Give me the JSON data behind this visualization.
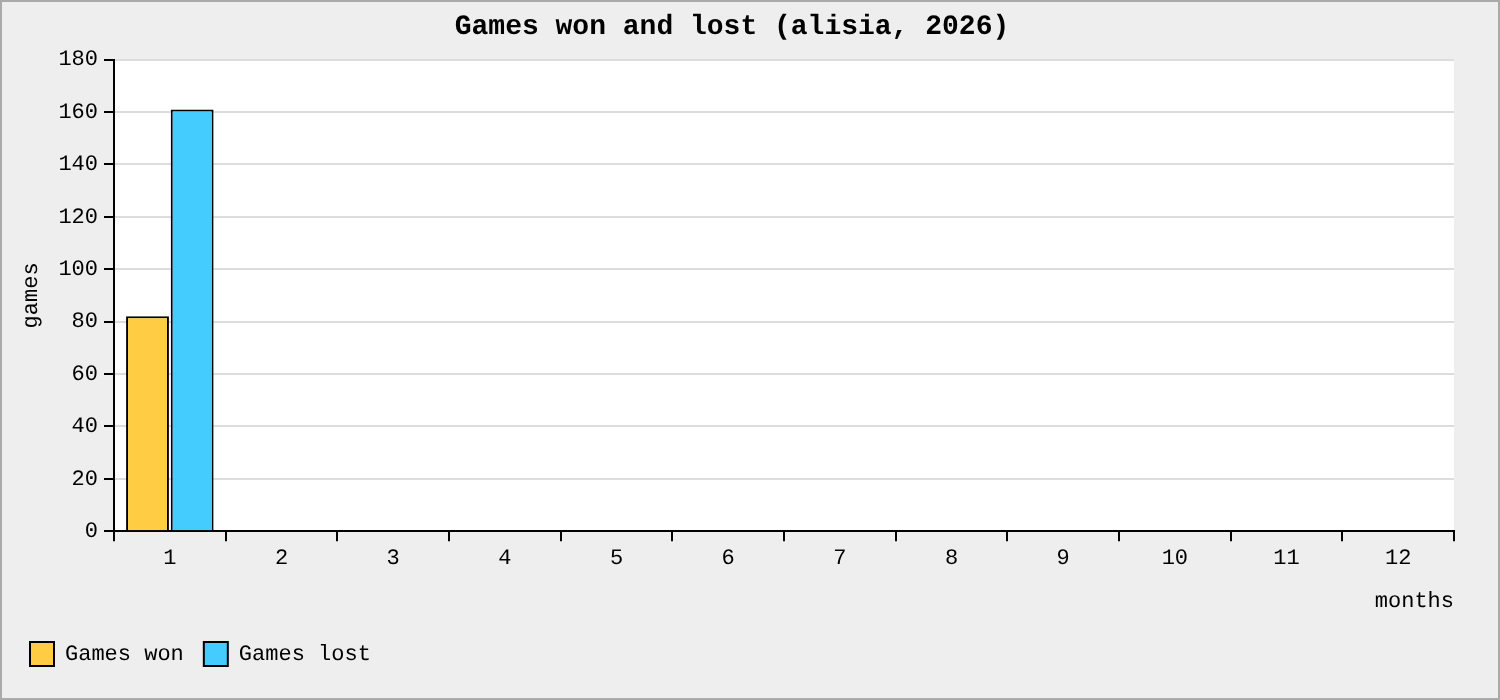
{
  "chart_data": {
    "type": "bar",
    "title": "Games won and lost (alisia, 2026)",
    "xlabel": "months",
    "ylabel": "games",
    "categories": [
      "1",
      "2",
      "3",
      "4",
      "5",
      "6",
      "7",
      "8",
      "9",
      "10",
      "11",
      "12"
    ],
    "series": [
      {
        "name": "Games won",
        "color": "#ffcc44",
        "values": [
          82,
          0,
          0,
          0,
          0,
          0,
          0,
          0,
          0,
          0,
          0,
          0
        ]
      },
      {
        "name": "Games lost",
        "color": "#44ccff",
        "values": [
          161,
          0,
          0,
          0,
          0,
          0,
          0,
          0,
          0,
          0,
          0,
          0
        ]
      }
    ],
    "ylim": [
      0,
      180
    ],
    "yticks": [
      0,
      20,
      40,
      60,
      80,
      100,
      120,
      140,
      160,
      180
    ],
    "grid": "y",
    "legend": "bottom left"
  }
}
